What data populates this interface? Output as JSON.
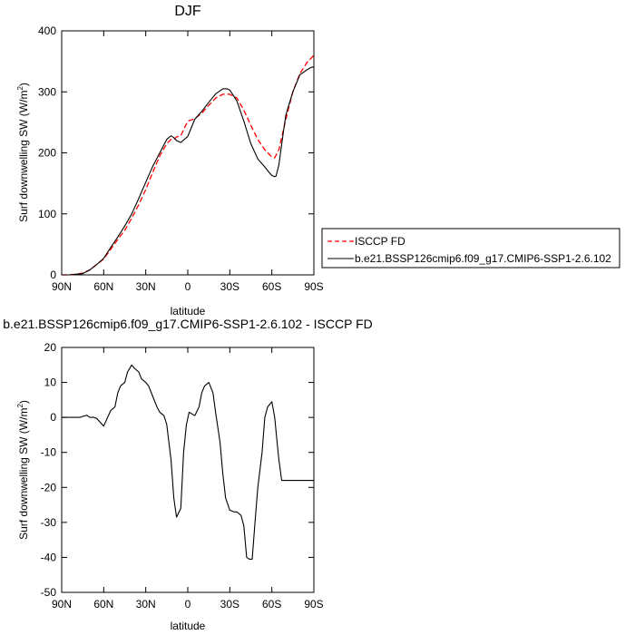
{
  "chart_data": [
    {
      "type": "line",
      "title": "DJF",
      "xlabel": "latitude",
      "ylabel_main": "Surf downwelling SW (W/m",
      "ylabel_sup": "2",
      "ylabel_close": ")",
      "xlim": [
        -90,
        90
      ],
      "ylim": [
        0,
        400
      ],
      "x_ticks": [
        -90,
        -60,
        -30,
        0,
        30,
        60,
        90
      ],
      "x_tick_labels": [
        "90N",
        "60N",
        "30N",
        "0",
        "30S",
        "60S",
        "90S"
      ],
      "y_ticks": [
        0,
        100,
        200,
        300,
        400
      ],
      "y_tick_labels": [
        "0",
        "100",
        "200",
        "300",
        "400"
      ],
      "legend_placement": "right",
      "series": [
        {
          "name": "ISCCP FD",
          "color": "#ff0000",
          "dash": "dashed",
          "x": [
            -90,
            -85,
            -80,
            -75,
            -70,
            -65,
            -60,
            -55,
            -50,
            -45,
            -40,
            -35,
            -30,
            -25,
            -20,
            -15,
            -12,
            -10,
            -8,
            -5,
            -3,
            0,
            5,
            10,
            15,
            20,
            25,
            30,
            35,
            40,
            45,
            50,
            55,
            60,
            62,
            65,
            70,
            75,
            80,
            85,
            88,
            90
          ],
          "y": [
            0,
            0,
            1,
            3,
            8,
            17,
            26,
            42,
            58,
            73,
            93,
            115,
            140,
            168,
            195,
            215,
            222,
            222,
            226,
            228,
            238,
            252,
            256,
            265,
            278,
            290,
            296,
            296,
            290,
            270,
            245,
            222,
            205,
            193,
            192,
            205,
            255,
            300,
            330,
            348,
            355,
            360
          ]
        },
        {
          "name": "b.e21.BSSP126cmip6.f09_g17.CMIP6-SSP1-2.6.102",
          "color": "#000000",
          "dash": "solid",
          "x": [
            -90,
            -85,
            -80,
            -75,
            -70,
            -65,
            -60,
            -55,
            -50,
            -45,
            -40,
            -35,
            -30,
            -25,
            -20,
            -15,
            -12,
            -10,
            -8,
            -5,
            0,
            5,
            10,
            15,
            20,
            25,
            28,
            30,
            35,
            40,
            45,
            50,
            55,
            58,
            60,
            62,
            63,
            65,
            68,
            70,
            75,
            80,
            85,
            88,
            90
          ],
          "y": [
            0,
            0,
            1,
            2,
            8,
            17,
            27,
            45,
            62,
            80,
            100,
            125,
            152,
            178,
            200,
            222,
            228,
            225,
            220,
            217,
            227,
            255,
            268,
            283,
            297,
            305,
            305,
            303,
            285,
            252,
            215,
            190,
            177,
            168,
            163,
            161,
            162,
            180,
            230,
            262,
            300,
            328,
            336,
            340,
            341
          ]
        }
      ]
    },
    {
      "type": "line",
      "title": "b.e21.BSSP126cmip6.f09_g17.CMIP6-SSP1-2.6.102 - ISCCP FD",
      "xlabel": "latitude",
      "ylabel_main": "Surf downwelling SW (W/m",
      "ylabel_sup": "2",
      "ylabel_close": ")",
      "xlim": [
        -90,
        90
      ],
      "ylim": [
        -50,
        20
      ],
      "x_ticks": [
        -90,
        -60,
        -30,
        0,
        30,
        60,
        90
      ],
      "x_tick_labels": [
        "90N",
        "60N",
        "30N",
        "0",
        "30S",
        "60S",
        "90S"
      ],
      "y_ticks": [
        -50,
        -40,
        -30,
        -20,
        -10,
        0,
        10,
        20
      ],
      "y_tick_labels": [
        "-50",
        "-40",
        "-30",
        "-20",
        "-10",
        "0",
        "10",
        "20"
      ],
      "series": [
        {
          "color": "#000000",
          "dash": "solid",
          "x": [
            -90,
            -85,
            -80,
            -77,
            -75,
            -72,
            -70,
            -67,
            -65,
            -60,
            -55,
            -52,
            -50,
            -48,
            -45,
            -43,
            -40,
            -38,
            -35,
            -33,
            -30,
            -28,
            -25,
            -22,
            -20,
            -17,
            -15,
            -12,
            -10,
            -8,
            -5,
            -3,
            -1,
            1,
            3,
            5,
            8,
            10,
            12,
            15,
            18,
            20,
            23,
            25,
            27,
            30,
            33,
            35,
            38,
            40,
            42,
            44,
            46,
            48,
            50,
            53,
            55,
            57,
            60,
            62,
            64,
            65,
            67,
            70,
            72,
            75,
            78,
            80,
            82,
            85,
            88,
            90
          ],
          "y": [
            0,
            0,
            0,
            0,
            0.3,
            0.6,
            0,
            0,
            -0.3,
            -2.5,
            2,
            3,
            7,
            9,
            10,
            13,
            15,
            14,
            13,
            11,
            10,
            9,
            6,
            3,
            1.5,
            0.5,
            -2,
            -12,
            -23,
            -28.5,
            -26,
            -10,
            -2,
            1.5,
            1,
            0.5,
            3,
            7,
            9,
            10,
            7,
            1,
            -7,
            -16,
            -23,
            -26.5,
            -27,
            -27,
            -28,
            -31,
            -40,
            -40.5,
            -40.5,
            -30,
            -20,
            -10,
            0,
            3,
            4.5,
            0,
            -8,
            -12,
            -18,
            -18,
            -18,
            -18,
            -18,
            -18,
            -18,
            -18,
            -18,
            -18
          ]
        }
      ]
    }
  ]
}
